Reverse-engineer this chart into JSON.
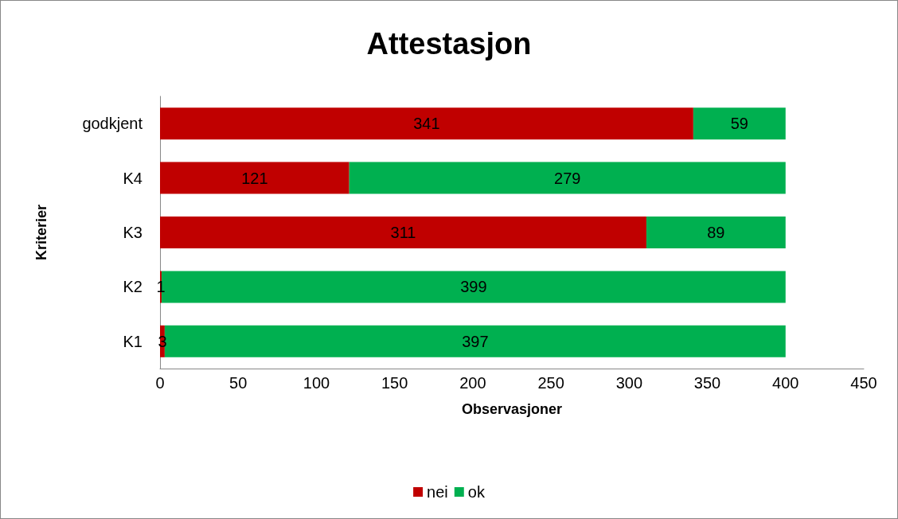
{
  "chart_data": {
    "type": "bar",
    "title": "Attestasjon",
    "xlabel": "Observasjoner",
    "ylabel": "Kriterier",
    "orientation": "horizontal",
    "stacked": true,
    "categories": [
      "godkjent",
      "K4",
      "K3",
      "K2",
      "K1"
    ],
    "series": [
      {
        "name": "nei",
        "color": "#c00000",
        "values": [
          341,
          121,
          311,
          1,
          3
        ]
      },
      {
        "name": "ok",
        "color": "#00b050",
        "values": [
          59,
          279,
          89,
          399,
          397
        ]
      }
    ],
    "xlim": [
      0,
      450
    ],
    "xticks": [
      0,
      50,
      100,
      150,
      200,
      250,
      300,
      350,
      400,
      450
    ],
    "grid": false,
    "legend": "bottom",
    "data_labels": true
  }
}
